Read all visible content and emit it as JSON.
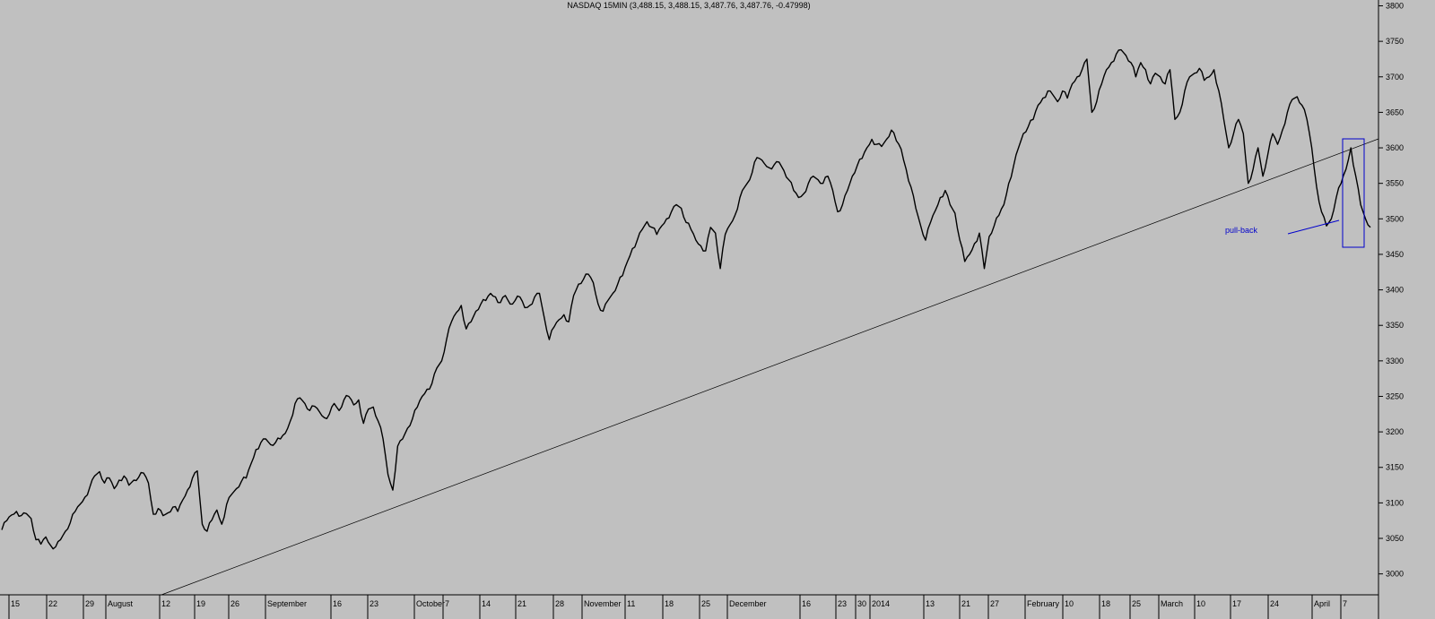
{
  "chart_data": {
    "type": "line",
    "title": "NASDAQ 15MIN (3,488.15, 3,488.15, 3,487.76, 3,487.76, -0.47998)",
    "xlabel": "",
    "ylabel": "",
    "ylim": [
      2960,
      3810
    ],
    "y_ticks": [
      3000,
      3050,
      3100,
      3150,
      3200,
      3250,
      3300,
      3350,
      3400,
      3450,
      3500,
      3550,
      3600,
      3650,
      3700,
      3750,
      3800
    ],
    "x_tick_labels": [
      "15",
      "22",
      "29",
      "August",
      "12",
      "19",
      "26",
      "September",
      "16",
      "23",
      "October",
      "7",
      "14",
      "21",
      "28",
      "November",
      "11",
      "18",
      "25",
      "December",
      "16",
      "23",
      "30",
      "2014",
      "13",
      "21",
      "27",
      "February",
      "10",
      "18",
      "25",
      "March",
      "10",
      "17",
      "24",
      "April",
      "7"
    ],
    "grid": false,
    "series": [
      {
        "values": [
          3062,
          3075,
          3083,
          3088,
          3082,
          3085,
          3078,
          3048,
          3042,
          3052,
          3040,
          3038,
          3048,
          3060,
          3072,
          3088,
          3098,
          3108,
          3122,
          3138,
          3144,
          3128,
          3135,
          3120,
          3132,
          3138,
          3125,
          3132,
          3136,
          3142,
          3128,
          3084,
          3092,
          3082,
          3086,
          3094,
          3088,
          3104,
          3118,
          3135,
          3145,
          3070,
          3060,
          3076,
          3090,
          3070,
          3098,
          3112,
          3120,
          3130,
          3135,
          3155,
          3175,
          3185,
          3190,
          3182,
          3185,
          3190,
          3198,
          3215,
          3240,
          3248,
          3240,
          3230,
          3236,
          3228,
          3220,
          3225,
          3240,
          3230,
          3245,
          3250,
          3238,
          3245,
          3212,
          3232,
          3235,
          3215,
          3190,
          3140,
          3118,
          3180,
          3190,
          3205,
          3218,
          3235,
          3250,
          3260,
          3268,
          3290,
          3300,
          3330,
          3355,
          3368,
          3378,
          3345,
          3355,
          3370,
          3380,
          3385,
          3395,
          3390,
          3382,
          3392,
          3380,
          3385,
          3390,
          3375,
          3378,
          3390,
          3395,
          3360,
          3330,
          3348,
          3358,
          3365,
          3355,
          3392,
          3408,
          3415,
          3422,
          3410,
          3380,
          3370,
          3385,
          3395,
          3408,
          3420,
          3440,
          3458,
          3470,
          3485,
          3496,
          3488,
          3478,
          3490,
          3500,
          3510,
          3520,
          3515,
          3495,
          3485,
          3470,
          3462,
          3455,
          3488,
          3480,
          3430,
          3478,
          3492,
          3505,
          3530,
          3545,
          3555,
          3580,
          3585,
          3578,
          3572,
          3576,
          3580,
          3568,
          3555,
          3540,
          3530,
          3535,
          3550,
          3560,
          3555,
          3550,
          3560,
          3540,
          3510,
          3520,
          3540,
          3560,
          3575,
          3585,
          3600,
          3612,
          3605,
          3602,
          3612,
          3625,
          3610,
          3598,
          3570,
          3545,
          3515,
          3490,
          3470,
          3495,
          3512,
          3530,
          3540,
          3520,
          3508,
          3470,
          3440,
          3450,
          3465,
          3480,
          3430,
          3475,
          3490,
          3505,
          3520,
          3550,
          3575,
          3600,
          3620,
          3630,
          3640,
          3660,
          3670,
          3680,
          3675,
          3665,
          3680,
          3670,
          3690,
          3700,
          3710,
          3725,
          3650,
          3665,
          3690,
          3710,
          3720,
          3732,
          3738,
          3730,
          3720,
          3700,
          3720,
          3710,
          3690,
          3705,
          3700,
          3690,
          3710,
          3640,
          3650,
          3680,
          3700,
          3705,
          3712,
          3695,
          3700,
          3710,
          3680,
          3640,
          3600,
          3620,
          3640,
          3620,
          3550,
          3570,
          3600,
          3560,
          3590,
          3620,
          3605,
          3625,
          3650,
          3668,
          3672,
          3660,
          3640,
          3600,
          3545,
          3510,
          3490,
          3500,
          3530,
          3550,
          3570,
          3600,
          3560,
          3520,
          3500,
          3488
        ]
      }
    ],
    "annotations": [
      {
        "kind": "trendline"
      },
      {
        "kind": "box"
      },
      {
        "kind": "label",
        "text": "pull-back"
      }
    ]
  },
  "colors": {
    "background": "#c0c0c0",
    "price": "#000000",
    "trendline": "#000000",
    "annotation": "#0000cc"
  }
}
